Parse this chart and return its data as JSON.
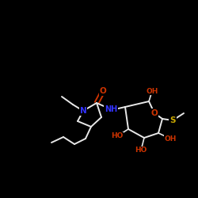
{
  "background_color": "#000000",
  "bond_color": "#e8e8e8",
  "atom_colors": {
    "N": "#3333ff",
    "O": "#cc3300",
    "S": "#ccaa00",
    "C": "#e8e8e8"
  },
  "figsize": [
    2.5,
    2.5
  ],
  "dpi": 100,
  "xlim": [
    0,
    250
  ],
  "ylim": [
    0,
    250
  ]
}
